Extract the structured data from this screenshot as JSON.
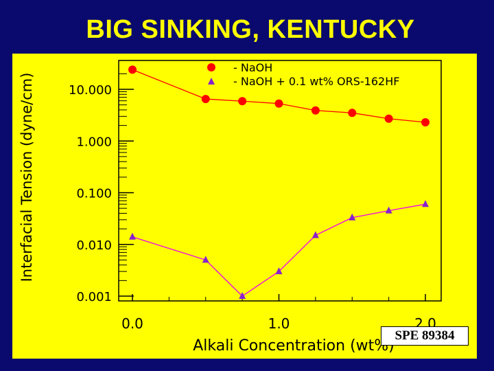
{
  "slide": {
    "title": "BIG SINKING, KENTUCKY",
    "reference": "SPE 89384"
  },
  "colors": {
    "background": "#0a0a6e",
    "panel": "#ffff00",
    "title": "#ffff00",
    "naoh_marker": "#ff0000",
    "ors_marker": "#8822cc",
    "naoh_line": "#ff0000",
    "ors_line": "#ee00ee"
  },
  "chart_data": {
    "type": "line",
    "title": "",
    "xlabel": "Alkali Concentration (wt%)",
    "ylabel": "Interfacial Tension (dyne/cm)",
    "y_scale": "log",
    "xlim": [
      0.0,
      2.2
    ],
    "ylim": [
      0.001,
      20.0
    ],
    "x_ticks": [
      0.0,
      1.0,
      2.0
    ],
    "x_tick_labels": [
      "0.0",
      "1.0",
      "2.0"
    ],
    "y_ticks": [
      10.0,
      1.0,
      0.1,
      0.01,
      0.001
    ],
    "y_tick_labels": [
      "10.000",
      "1.000",
      "0.100",
      "0.010",
      "0.001"
    ],
    "legend_position": "top-right",
    "series": [
      {
        "name": "- NaOH",
        "marker": "circle",
        "x": [
          0.0,
          0.5,
          0.75,
          1.0,
          1.25,
          1.5,
          1.75,
          2.0
        ],
        "y": [
          24,
          6.5,
          5.9,
          5.3,
          3.9,
          3.5,
          2.7,
          2.3
        ]
      },
      {
        "name": "- NaOH + 0.1 wt% ORS-162HF",
        "marker": "triangle",
        "x": [
          0.0,
          0.5,
          0.75,
          1.0,
          1.25,
          1.5,
          1.75,
          2.0
        ],
        "y": [
          0.014,
          0.005,
          0.001,
          0.003,
          0.015,
          0.033,
          0.045,
          0.06
        ]
      }
    ]
  }
}
